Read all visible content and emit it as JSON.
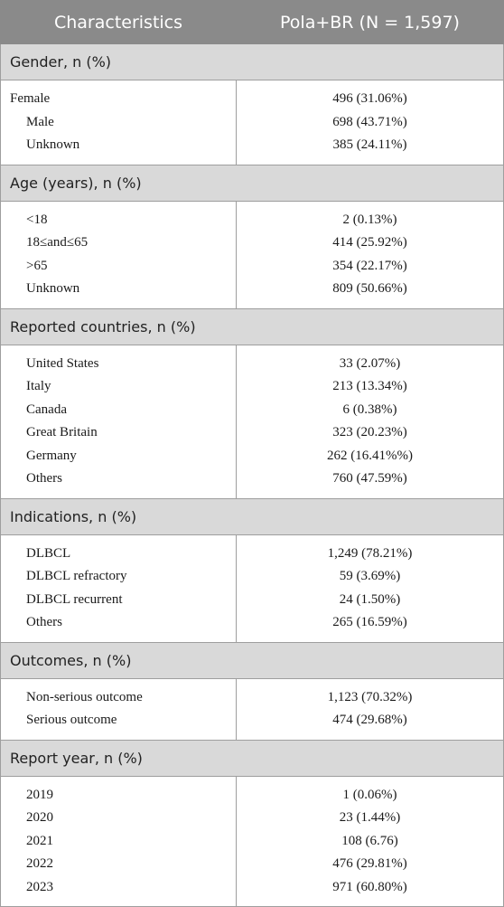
{
  "header": {
    "col1": "Characteristics",
    "col2": "Pola+BR (N = 1,597)"
  },
  "sections": [
    {
      "title": "Gender, n (%)",
      "rows": [
        {
          "label": "Female",
          "value": "496 (31.06%)"
        },
        {
          "label": "Male",
          "value": "698 (43.71%)"
        },
        {
          "label": "Unknown",
          "value": "385 (24.11%)"
        }
      ]
    },
    {
      "title": "Age (years), n (%)",
      "rows": [
        {
          "label": "<18",
          "value": "2 (0.13%)"
        },
        {
          "label": "18≤and≤65",
          "value": "414 (25.92%)"
        },
        {
          "label": ">65",
          "value": "354 (22.17%)"
        },
        {
          "label": "Unknown",
          "value": "809 (50.66%)"
        }
      ]
    },
    {
      "title": "Reported countries, n (%)",
      "rows": [
        {
          "label": "United States",
          "value": "33 (2.07%)"
        },
        {
          "label": "Italy",
          "value": "213 (13.34%)"
        },
        {
          "label": "Canada",
          "value": "6 (0.38%)"
        },
        {
          "label": "Great Britain",
          "value": "323 (20.23%)"
        },
        {
          "label": "Germany",
          "value": "262 (16.41%%)"
        },
        {
          "label": "Others",
          "value": "760 (47.59%)"
        }
      ]
    },
    {
      "title": "Indications, n (%)",
      "rows": [
        {
          "label": "DLBCL",
          "value": "1,249 (78.21%)"
        },
        {
          "label": "DLBCL refractory",
          "value": "59 (3.69%)"
        },
        {
          "label": "DLBCL recurrent",
          "value": "24 (1.50%)"
        },
        {
          "label": "Others",
          "value": "265 (16.59%)"
        }
      ]
    },
    {
      "title": "Outcomes, n (%)",
      "rows": [
        {
          "label": "Non-serious outcome",
          "value": "1,123 (70.32%)"
        },
        {
          "label": "Serious outcome",
          "value": "474 (29.68%)"
        }
      ]
    },
    {
      "title": "Report year, n (%)",
      "rows": [
        {
          "label": "2019",
          "value": "1 (0.06%)"
        },
        {
          "label": "2020",
          "value": "23 (1.44%)"
        },
        {
          "label": "2021",
          "value": "108 (6.76)"
        },
        {
          "label": "2022",
          "value": "476 (29.81%)"
        },
        {
          "label": "2023",
          "value": "971 (60.80%)"
        }
      ]
    }
  ]
}
